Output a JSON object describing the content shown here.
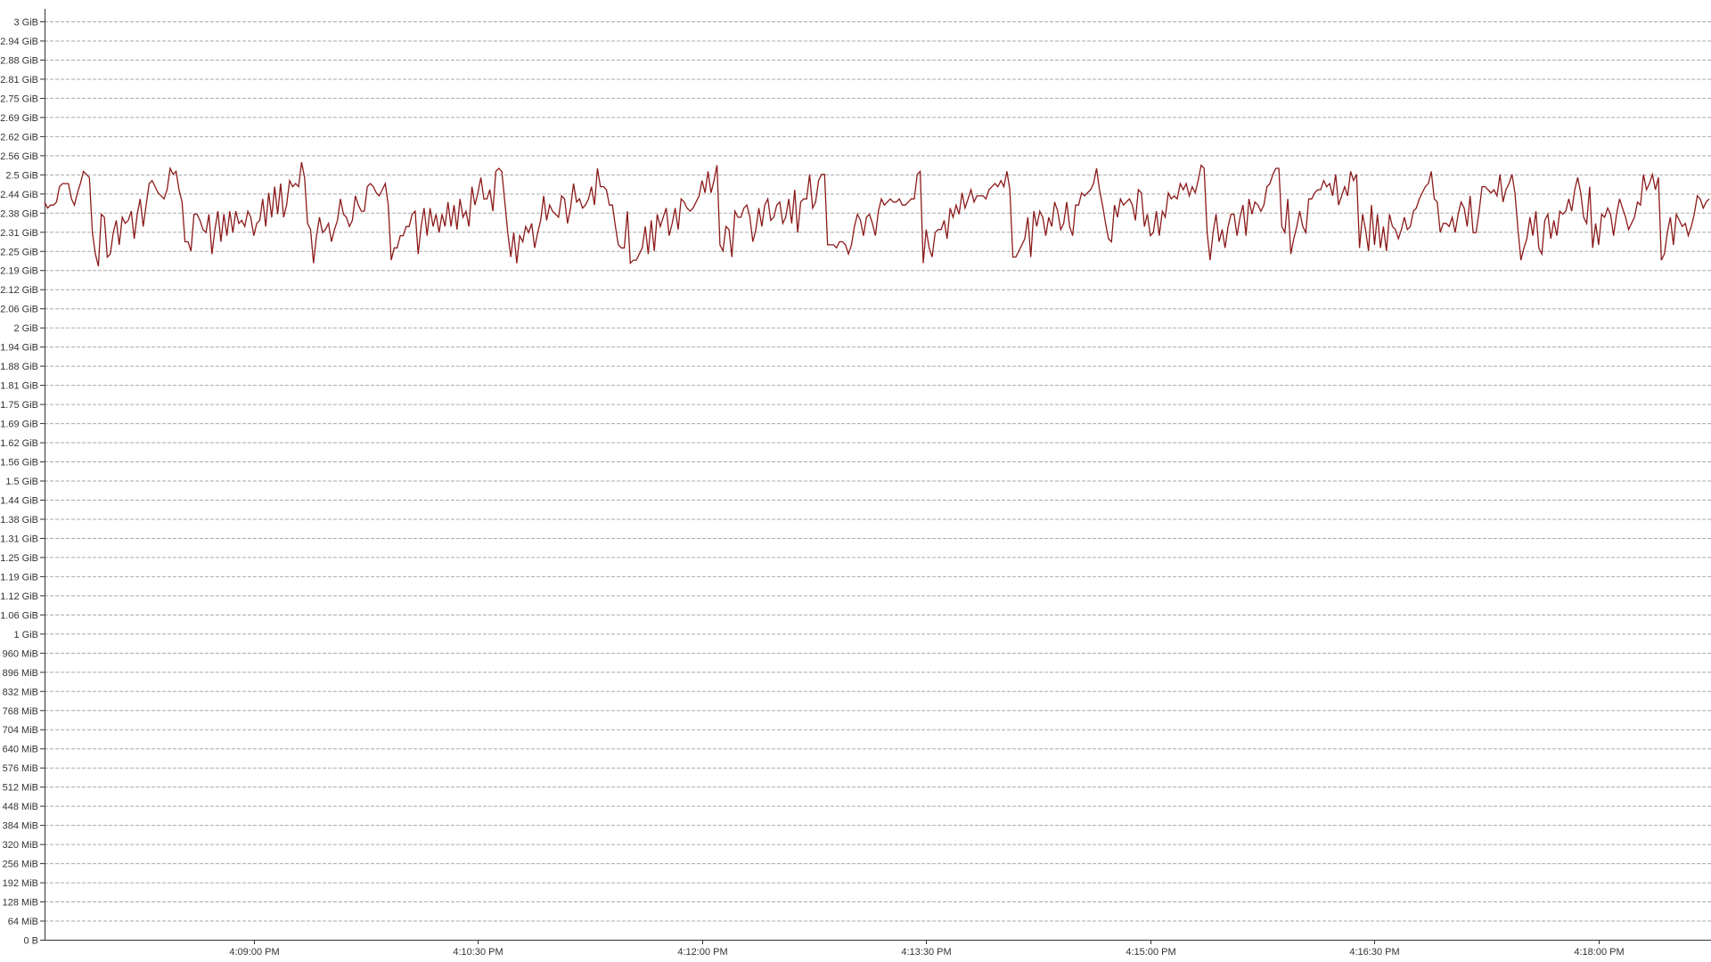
{
  "chart_data": {
    "type": "line",
    "title": "",
    "xlabel": "",
    "ylabel": "",
    "unit": "bytes",
    "x_range": [
      "4:07:36 PM",
      "4:18:00 PM"
    ],
    "ylim_gib": [
      0,
      3.0
    ],
    "grid": true,
    "legend": "none",
    "series": [
      {
        "color": "#8b1a1a",
        "x_start": "4:07:36 PM",
        "x_step_seconds": 1.2,
        "values_gib": [
          2.41,
          2.39,
          2.4,
          2.4,
          2.41,
          2.46,
          2.47,
          2.47,
          2.47,
          2.42,
          2.4,
          2.44,
          2.47,
          2.51,
          2.5,
          2.49,
          2.31,
          2.24,
          2.2,
          2.37,
          2.36,
          2.23,
          2.24,
          2.31,
          2.35,
          2.27,
          2.36,
          2.34,
          2.35,
          2.38,
          2.29,
          2.37,
          2.42,
          2.33,
          2.4,
          2.47,
          2.48,
          2.46,
          2.44,
          2.43,
          2.42,
          2.45,
          2.52,
          2.5,
          2.51,
          2.45,
          2.41,
          2.28,
          2.28,
          2.25,
          2.37,
          2.37,
          2.35,
          2.32,
          2.31,
          2.37,
          2.24,
          2.32,
          2.38,
          2.28,
          2.37,
          2.3,
          2.38,
          2.31,
          2.38,
          2.34,
          2.35,
          2.33,
          2.38,
          2.36,
          2.3,
          2.34,
          2.35,
          2.42,
          2.33,
          2.44,
          2.36,
          2.46,
          2.37,
          2.47,
          2.36,
          2.4,
          2.48,
          2.46,
          2.47,
          2.46,
          2.54,
          2.49,
          2.34,
          2.32,
          2.21,
          2.3,
          2.36,
          2.31,
          2.32,
          2.34,
          2.28,
          2.32,
          2.35,
          2.42,
          2.37,
          2.36,
          2.33,
          2.35,
          2.43,
          2.4,
          2.38,
          2.38,
          2.46,
          2.47,
          2.46,
          2.44,
          2.43,
          2.45,
          2.47,
          2.4,
          2.22,
          2.26,
          2.26,
          2.3,
          2.3,
          2.33,
          2.33,
          2.37,
          2.38,
          2.24,
          2.33,
          2.39,
          2.3,
          2.39,
          2.33,
          2.37,
          2.31,
          2.37,
          2.33,
          2.41,
          2.33,
          2.4,
          2.32,
          2.42,
          2.36,
          2.38,
          2.33,
          2.46,
          2.4,
          2.44,
          2.49,
          2.42,
          2.42,
          2.45,
          2.38,
          2.51,
          2.52,
          2.51,
          2.41,
          2.31,
          2.23,
          2.31,
          2.21,
          2.3,
          2.28,
          2.33,
          2.31,
          2.34,
          2.26,
          2.31,
          2.35,
          2.43,
          2.35,
          2.4,
          2.38,
          2.37,
          2.36,
          2.43,
          2.42,
          2.34,
          2.39,
          2.47,
          2.41,
          2.42,
          2.39,
          2.4,
          2.42,
          2.46,
          2.4,
          2.52,
          2.46,
          2.46,
          2.45,
          2.4,
          2.4,
          2.33,
          2.27,
          2.26,
          2.26,
          2.38,
          2.21,
          2.22,
          2.22,
          2.24,
          2.26,
          2.33,
          2.24,
          2.35,
          2.25,
          2.37,
          2.33,
          2.36,
          2.39,
          2.3,
          2.34,
          2.39,
          2.32,
          2.42,
          2.41,
          2.39,
          2.38,
          2.39,
          2.41,
          2.43,
          2.48,
          2.44,
          2.51,
          2.44,
          2.48,
          2.53,
          2.27,
          2.25,
          2.33,
          2.32,
          2.23,
          2.38,
          2.36,
          2.36,
          2.39,
          2.4,
          2.36,
          2.28,
          2.32,
          2.39,
          2.33,
          2.4,
          2.42,
          2.35,
          2.36,
          2.4,
          2.41,
          2.34,
          2.36,
          2.42,
          2.34,
          2.45,
          2.31,
          2.41,
          2.42,
          2.42,
          2.5,
          2.39,
          2.41,
          2.48,
          2.5,
          2.5,
          2.27,
          2.27,
          2.27,
          2.26,
          2.28,
          2.28,
          2.27,
          2.24,
          2.27,
          2.33,
          2.37,
          2.35,
          2.3,
          2.36,
          2.37,
          2.34,
          2.3,
          2.38,
          2.42,
          2.4,
          2.41,
          2.42,
          2.41,
          2.41,
          2.42,
          2.4,
          2.4,
          2.41,
          2.42,
          2.42,
          2.5,
          2.51,
          2.21,
          2.32,
          2.26,
          2.23,
          2.31,
          2.32,
          2.32,
          2.35,
          2.29,
          2.39,
          2.36,
          2.4,
          2.37,
          2.44,
          2.39,
          2.42,
          2.45,
          2.41,
          2.43,
          2.43,
          2.43,
          2.42,
          2.45,
          2.46,
          2.47,
          2.46,
          2.48,
          2.46,
          2.51,
          2.45,
          2.23,
          2.23,
          2.25,
          2.27,
          2.29,
          2.36,
          2.23,
          2.38,
          2.33,
          2.38,
          2.36,
          2.3,
          2.36,
          2.33,
          2.41,
          2.38,
          2.32,
          2.34,
          2.41,
          2.33,
          2.3,
          2.4,
          2.4,
          2.44,
          2.43,
          2.44,
          2.45,
          2.47,
          2.52,
          2.45,
          2.4,
          2.34,
          2.29,
          2.28,
          2.4,
          2.36,
          2.42,
          2.4,
          2.41,
          2.42,
          2.4,
          2.35,
          2.45,
          2.44,
          2.33,
          2.37,
          2.3,
          2.31,
          2.38,
          2.3,
          2.38,
          2.36,
          2.44,
          2.42,
          2.43,
          2.42,
          2.47,
          2.45,
          2.47,
          2.43,
          2.46,
          2.44,
          2.48,
          2.53,
          2.52,
          2.31,
          2.22,
          2.31,
          2.37,
          2.28,
          2.32,
          2.26,
          2.33,
          2.37,
          2.37,
          2.3,
          2.36,
          2.4,
          2.3,
          2.42,
          2.37,
          2.41,
          2.4,
          2.38,
          2.4,
          2.46,
          2.47,
          2.5,
          2.52,
          2.52,
          2.33,
          2.31,
          2.42,
          2.24,
          2.29,
          2.33,
          2.38,
          2.33,
          2.31,
          2.42,
          2.42,
          2.44,
          2.45,
          2.45,
          2.48,
          2.46,
          2.47,
          2.43,
          2.5,
          2.4,
          2.43,
          2.46,
          2.43,
          2.51,
          2.48,
          2.5,
          2.26,
          2.37,
          2.32,
          2.25,
          2.4,
          2.27,
          2.37,
          2.26,
          2.33,
          2.25,
          2.37,
          2.33,
          2.32,
          2.29,
          2.32,
          2.36,
          2.32,
          2.33,
          2.38,
          2.39,
          2.42,
          2.44,
          2.46,
          2.47,
          2.51,
          2.42,
          2.41,
          2.31,
          2.34,
          2.34,
          2.33,
          2.36,
          2.31,
          2.37,
          2.41,
          2.39,
          2.33,
          2.43,
          2.31,
          2.31,
          2.38,
          2.46,
          2.46,
          2.45,
          2.44,
          2.45,
          2.43,
          2.5,
          2.41,
          2.45,
          2.47,
          2.5,
          2.44,
          2.32,
          2.22,
          2.26,
          2.29,
          2.36,
          2.3,
          2.38,
          2.26,
          2.24,
          2.35,
          2.37,
          2.29,
          2.35,
          2.3,
          2.38,
          2.37,
          2.38,
          2.42,
          2.38,
          2.45,
          2.49,
          2.44,
          2.36,
          2.34,
          2.46,
          2.26,
          2.34,
          2.27,
          2.37,
          2.36,
          2.39,
          2.37,
          2.3,
          2.37,
          2.42,
          2.39,
          2.36,
          2.32,
          2.34,
          2.36,
          2.41,
          2.4,
          2.5,
          2.45,
          2.47,
          2.5,
          2.45,
          2.49,
          2.22,
          2.24,
          2.31,
          2.36,
          2.27,
          2.37,
          2.35,
          2.33,
          2.34,
          2.3,
          2.33,
          2.37,
          2.43,
          2.42,
          2.39,
          2.41,
          2.42
        ]
      }
    ]
  },
  "y_axis": {
    "tick_labels": [
      "0 B",
      "64 MiB",
      "128 MiB",
      "192 MiB",
      "256 MiB",
      "320 MiB",
      "384 MiB",
      "448 MiB",
      "512 MiB",
      "576 MiB",
      "640 MiB",
      "704 MiB",
      "768 MiB",
      "832 MiB",
      "896 MiB",
      "960 MiB",
      "1 GiB",
      "1.06 GiB",
      "1.12 GiB",
      "1.19 GiB",
      "1.25 GiB",
      "1.31 GiB",
      "1.38 GiB",
      "1.44 GiB",
      "1.5 GiB",
      "1.56 GiB",
      "1.62 GiB",
      "1.69 GiB",
      "1.75 GiB",
      "1.81 GiB",
      "1.88 GiB",
      "1.94 GiB",
      "2 GiB",
      "2.06 GiB",
      "2.12 GiB",
      "2.19 GiB",
      "2.25 GiB",
      "2.31 GiB",
      "2.38 GiB",
      "2.44 GiB",
      "2.5 GiB",
      "2.56 GiB",
      "2.62 GiB",
      "2.69 GiB",
      "2.75 GiB",
      "2.81 GiB",
      "2.88 GiB",
      "2.94 GiB",
      "3 GiB"
    ]
  },
  "x_axis": {
    "ticks": [
      {
        "label": "4:09:00 PM",
        "seconds": 84
      },
      {
        "label": "4:10:30 PM",
        "seconds": 174
      },
      {
        "label": "4:12:00 PM",
        "seconds": 264
      },
      {
        "label": "4:13:30 PM",
        "seconds": 354
      },
      {
        "label": "4:15:00 PM",
        "seconds": 444
      },
      {
        "label": "4:16:30 PM",
        "seconds": 534
      },
      {
        "label": "4:18:00 PM",
        "seconds": 624
      }
    ]
  }
}
